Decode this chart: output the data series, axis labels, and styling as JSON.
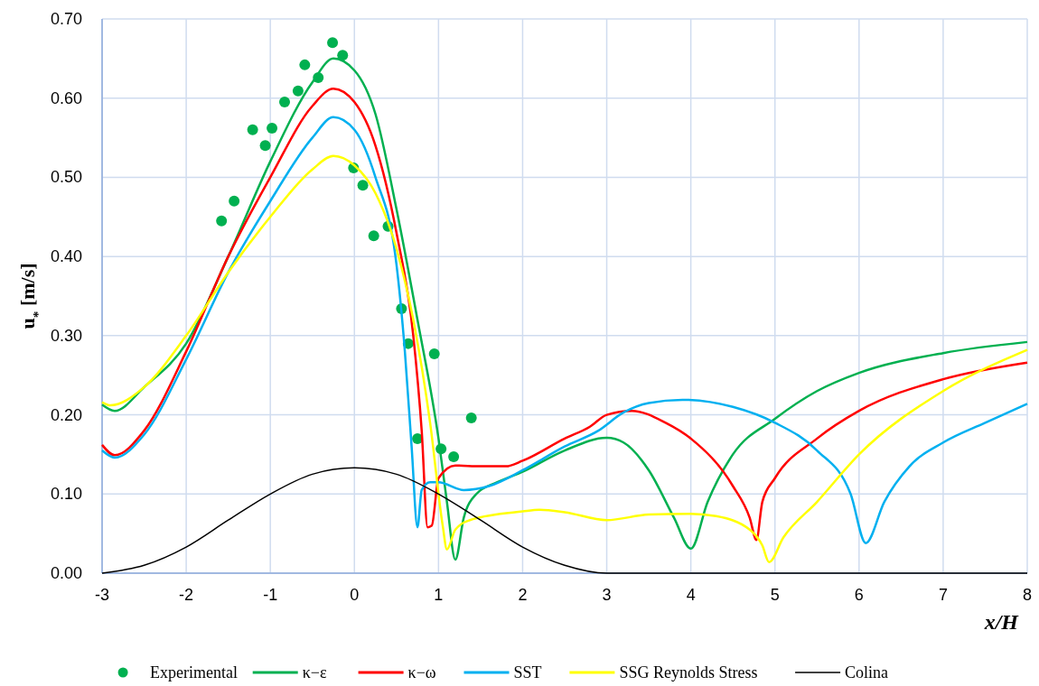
{
  "chart_data": {
    "type": "line",
    "xlabel": "x/H",
    "ylabel": "u$_{*}$ [m/s]",
    "xlim": [
      -3,
      8
    ],
    "xticks": [
      -3,
      -2,
      -1,
      0,
      1,
      2,
      3,
      4,
      5,
      6,
      7,
      8
    ],
    "ylim": [
      0,
      0.7
    ],
    "yticks": [
      {
        "value": 0,
        "label": "0.00"
      },
      {
        "value": 0.1,
        "label": "0.10"
      },
      {
        "value": 0.2,
        "label": "0.20"
      },
      {
        "value": 0.3,
        "label": "0.30"
      },
      {
        "value": 0.4,
        "label": "0.40"
      },
      {
        "value": 0.5,
        "label": "0.50"
      },
      {
        "value": 0.6,
        "label": "0.60"
      },
      {
        "value": 0.7,
        "label": "0.70"
      }
    ],
    "grid": true,
    "legend": "bottom",
    "series": [
      {
        "name": "Experimental",
        "type": "scatter",
        "marker": "circle",
        "color": "#00b050",
        "x": [
          -1.58,
          -1.43,
          -1.21,
          -1.06,
          -0.98,
          -0.83,
          -0.67,
          -0.59,
          -0.43,
          -0.26,
          -0.14,
          -0.01,
          0.1,
          0.23,
          0.4,
          0.56,
          0.64,
          0.95,
          0.75,
          1.03,
          1.18,
          1.39
        ],
        "values": [
          0.445,
          0.47,
          0.56,
          0.54,
          0.562,
          0.595,
          0.609,
          0.642,
          0.626,
          0.67,
          0.654,
          0.512,
          0.49,
          0.426,
          0.438,
          0.334,
          0.29,
          0.277,
          0.17,
          0.157,
          0.147,
          0.196
        ]
      },
      {
        "name": "κ−ε",
        "color": "#00b050",
        "x": [
          -3,
          -2.85,
          -2.5,
          -2,
          -1.5,
          -1,
          -0.5,
          -0.25,
          0,
          0.25,
          0.5,
          0.75,
          1,
          1.1,
          1.2,
          1.3,
          1.45,
          1.7,
          2,
          2.5,
          3,
          3.2,
          3.5,
          3.8,
          4,
          4.2,
          4.5,
          5,
          5.5,
          6,
          7,
          8
        ],
        "values": [
          0.213,
          0.205,
          0.235,
          0.29,
          0.4,
          0.52,
          0.62,
          0.65,
          0.635,
          0.58,
          0.46,
          0.32,
          0.17,
          0.09,
          0.017,
          0.07,
          0.1,
          0.115,
          0.128,
          0.155,
          0.171,
          0.165,
          0.13,
          0.07,
          0.031,
          0.09,
          0.15,
          0.195,
          0.23,
          0.253,
          0.278,
          0.292
        ]
      },
      {
        "name": "κ−ω",
        "color": "#ff0000",
        "x": [
          -3,
          -2.85,
          -2.5,
          -2,
          -1.5,
          -1,
          -0.5,
          -0.25,
          0,
          0.25,
          0.5,
          0.7,
          0.8,
          0.87,
          0.92,
          1,
          1.2,
          1.5,
          1.8,
          2,
          2.5,
          2.8,
          3,
          3.3,
          3.7,
          4,
          4.5,
          4.7,
          4.78,
          4.85,
          5,
          5.5,
          6,
          7,
          8
        ],
        "values": [
          0.162,
          0.149,
          0.18,
          0.28,
          0.4,
          0.5,
          0.59,
          0.612,
          0.595,
          0.54,
          0.43,
          0.3,
          0.18,
          0.058,
          0.06,
          0.12,
          0.136,
          0.135,
          0.135,
          0.142,
          0.17,
          0.185,
          0.2,
          0.205,
          0.19,
          0.17,
          0.11,
          0.07,
          0.042,
          0.09,
          0.12,
          0.17,
          0.205,
          0.245,
          0.266
        ]
      },
      {
        "name": "SST",
        "color": "#00b0f0",
        "x": [
          -3,
          -2.85,
          -2.5,
          -2,
          -1.5,
          -1,
          -0.5,
          -0.25,
          0,
          0.25,
          0.5,
          0.6,
          0.68,
          0.75,
          0.8,
          0.9,
          1,
          1.3,
          1.6,
          2,
          2.5,
          2.9,
          3.2,
          3.5,
          3.9,
          4.5,
          5,
          5.5,
          5.9,
          6.08,
          6.3,
          6.6,
          7,
          7.5,
          8
        ],
        "values": [
          0.155,
          0.146,
          0.175,
          0.27,
          0.38,
          0.47,
          0.55,
          0.576,
          0.56,
          0.5,
          0.39,
          0.28,
          0.16,
          0.058,
          0.105,
          0.115,
          0.115,
          0.105,
          0.11,
          0.13,
          0.16,
          0.18,
          0.203,
          0.215,
          0.219,
          0.21,
          0.19,
          0.155,
          0.1,
          0.038,
          0.09,
          0.135,
          0.165,
          0.19,
          0.214
        ]
      },
      {
        "name": "SSG Reynolds Stress",
        "color": "#ffff00",
        "x": [
          -3,
          -2.9,
          -2.5,
          -2,
          -1.5,
          -1,
          -0.5,
          -0.25,
          0,
          0.25,
          0.5,
          0.7,
          0.9,
          1.05,
          1.1,
          1.2,
          1.4,
          2,
          2.2,
          2.5,
          3,
          3.5,
          4,
          4.3,
          4.7,
          4.85,
          4.93,
          5.1,
          5.5,
          6,
          7,
          8
        ],
        "values": [
          0.216,
          0.212,
          0.235,
          0.3,
          0.38,
          0.45,
          0.51,
          0.527,
          0.515,
          0.48,
          0.41,
          0.32,
          0.19,
          0.06,
          0.03,
          0.055,
          0.068,
          0.078,
          0.08,
          0.077,
          0.067,
          0.074,
          0.075,
          0.072,
          0.055,
          0.035,
          0.014,
          0.045,
          0.09,
          0.15,
          0.23,
          0.282
        ]
      },
      {
        "name": "Colina",
        "color": "#000000",
        "x": [
          -3,
          -2.5,
          -2,
          -1.5,
          -1,
          -0.5,
          0,
          0.5,
          1,
          1.5,
          2,
          2.5,
          3,
          8
        ],
        "values": [
          0,
          0.01,
          0.033,
          0.067,
          0.1,
          0.125,
          0.133,
          0.125,
          0.1,
          0.067,
          0.033,
          0.01,
          0,
          0
        ]
      }
    ]
  }
}
